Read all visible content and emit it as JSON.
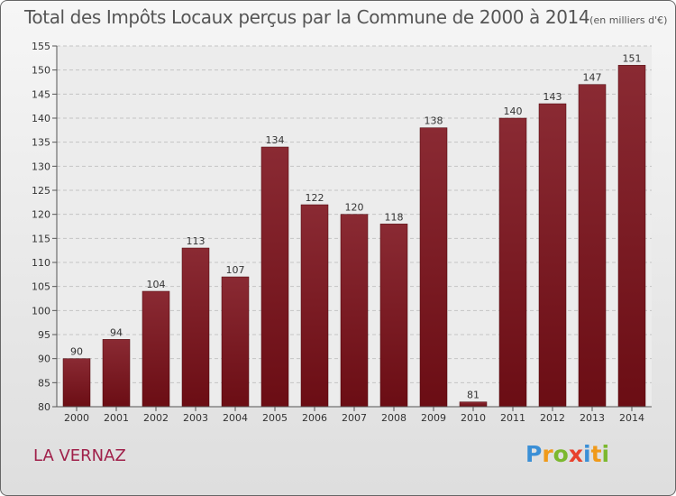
{
  "chart_data": {
    "type": "bar",
    "title": "Total des Impôts Locaux perçus par la Commune de 2000 à 2014",
    "unit_note": "(en milliers d'€)",
    "categories": [
      "2000",
      "2001",
      "2002",
      "2003",
      "2004",
      "2005",
      "2006",
      "2007",
      "2008",
      "2009",
      "2010",
      "2011",
      "2012",
      "2013",
      "2014"
    ],
    "values": [
      90,
      94,
      104,
      113,
      107,
      134,
      122,
      120,
      118,
      138,
      81,
      140,
      143,
      147,
      151
    ],
    "ylim": [
      80,
      155
    ],
    "yticks": [
      80,
      85,
      90,
      95,
      100,
      105,
      110,
      115,
      120,
      125,
      130,
      135,
      140,
      145,
      150,
      155
    ],
    "grid": true,
    "bar_color": "#6b0d14",
    "xlabel": "",
    "ylabel": ""
  },
  "commune_name": "LA VERNAZ",
  "logo": {
    "letters": [
      "P",
      "r",
      "o",
      "x",
      "i",
      "t",
      "i"
    ],
    "colors": [
      "#3a8fd6",
      "#f09a1a",
      "#7cb82f",
      "#e8412c",
      "#3a8fd6",
      "#f09a1a",
      "#7cb82f"
    ]
  }
}
